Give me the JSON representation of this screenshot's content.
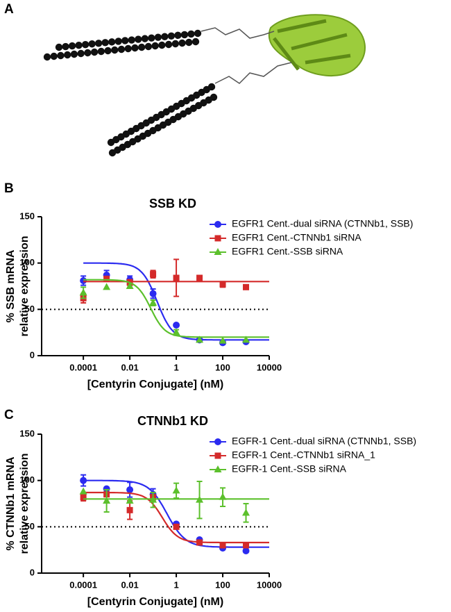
{
  "panel_labels": [
    "A",
    "B",
    "C"
  ],
  "chart_data": [
    {
      "type": "dose-response",
      "title": "SSB KD",
      "ylabel": [
        "% SSB mRNA",
        "relative expression"
      ],
      "xlabel": "[Centyrin Conjugate] (nM)",
      "log_x": true,
      "xlim": [
        1.6e-06,
        10000
      ],
      "xticks": [
        0.0001,
        0.01,
        1,
        100,
        10000
      ],
      "ylim": [
        0,
        150
      ],
      "yticks": [
        0,
        50,
        100,
        150
      ],
      "hline": 50,
      "legend": "upper right",
      "grid": false,
      "x": [
        0.0001,
        0.001,
        0.01,
        0.1,
        1,
        10,
        100,
        1000
      ],
      "series": [
        {
          "name": "EGFR1 Cent.-dual siRNA (CTNNb1, SSB)",
          "color": "#2b2bf0",
          "marker": "circle",
          "values": [
            81,
            87,
            82,
            67,
            33,
            17,
            14,
            15
          ],
          "errors": [
            5,
            5,
            4,
            5,
            null,
            null,
            2,
            null
          ],
          "fit": {
            "top": 100,
            "bottom": 17,
            "ec50": 0.15,
            "hill": 1.3
          }
        },
        {
          "name": "EGFR1 Cent.-CTNNb1 siRNA",
          "color": "#d42a2a",
          "marker": "square",
          "values": [
            62,
            83,
            79,
            88,
            84,
            84,
            77,
            74
          ],
          "errors": [
            5,
            null,
            3,
            4,
            20,
            null,
            3,
            null
          ],
          "fit": {
            "top": 80,
            "bottom": 80,
            "ec50": 1,
            "hill": 1
          }
        },
        {
          "name": "EGFR1 Cent.-SSB siRNA",
          "color": "#5cc02c",
          "marker": "triangle",
          "values": [
            68,
            74,
            75,
            57,
            25,
            17,
            16,
            17
          ],
          "errors": [
            6,
            null,
            null,
            3,
            3,
            null,
            null,
            null
          ],
          "fit": {
            "top": 82,
            "bottom": 20,
            "ec50": 0.08,
            "hill": 1.4
          }
        }
      ]
    },
    {
      "type": "dose-response",
      "title": "CTNNb1 KD",
      "ylabel": [
        "% CTNNb1 mRNA",
        "relative expression"
      ],
      "xlabel": "[Centyrin Conjugate] (nM)",
      "log_x": true,
      "xlim": [
        1.6e-06,
        10000
      ],
      "xticks": [
        0.0001,
        0.01,
        1,
        100,
        10000
      ],
      "ylim": [
        0,
        150
      ],
      "yticks": [
        0,
        50,
        100,
        150
      ],
      "hline": 50,
      "legend": "upper right",
      "grid": false,
      "x": [
        0.0001,
        0.001,
        0.01,
        0.1,
        1,
        10,
        100,
        1000
      ],
      "series": [
        {
          "name": "EGFR-1 Cent.-dual siRNA (CTNNb1, SSB)",
          "color": "#2b2bf0",
          "marker": "circle",
          "values": [
            100,
            91,
            90,
            85,
            53,
            36,
            27,
            24
          ],
          "errors": [
            6,
            null,
            8,
            6,
            null,
            null,
            null,
            null
          ],
          "fit": {
            "top": 100,
            "bottom": 28,
            "ec50": 0.4,
            "hill": 1.1
          }
        },
        {
          "name": "EGFR-1 Cent.-CTNNb1 siRNA_1",
          "color": "#d42a2a",
          "marker": "square",
          "values": [
            82,
            85,
            68,
            82,
            50,
            33,
            30,
            30
          ],
          "errors": [
            4,
            null,
            10,
            null,
            null,
            null,
            2,
            2
          ],
          "fit": {
            "top": 87,
            "bottom": 33,
            "ec50": 0.25,
            "hill": 1.3
          }
        },
        {
          "name": "EGFR-1 Cent.-SSB siRNA",
          "color": "#5cc02c",
          "marker": "triangle",
          "values": [
            88,
            78,
            78,
            79,
            89,
            79,
            82,
            65
          ],
          "errors": [
            null,
            12,
            null,
            8,
            8,
            20,
            10,
            10
          ],
          "fit": {
            "top": 80,
            "bottom": 80,
            "ec50": 1,
            "hill": 1
          }
        }
      ]
    }
  ]
}
